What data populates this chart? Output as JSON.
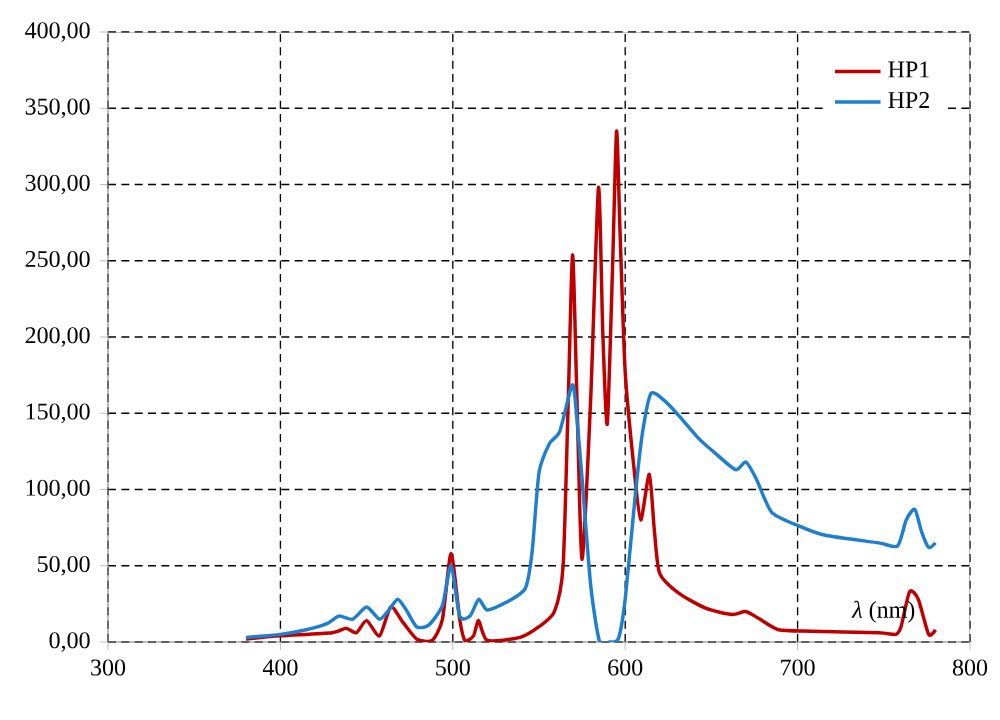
{
  "chart_data": {
    "type": "line",
    "xlabel": "*λ* (nm)",
    "xlim": [
      300,
      800
    ],
    "ylim": [
      0,
      400
    ],
    "xticks": [
      300,
      400,
      500,
      600,
      700,
      800
    ],
    "yticks": [
      {
        "value": 0,
        "label": "0,00"
      },
      {
        "value": 50,
        "label": "50,00"
      },
      {
        "value": 100,
        "label": "100,00"
      },
      {
        "value": 150,
        "label": "150,00"
      },
      {
        "value": 200,
        "label": "200,00"
      },
      {
        "value": 250,
        "label": "250,00"
      },
      {
        "value": 300,
        "label": "300,00"
      },
      {
        "value": 350,
        "label": "350,00"
      },
      {
        "value": 400,
        "label": "400,00"
      }
    ],
    "grid": true,
    "legend": "top right",
    "line_style": "solid",
    "marker": "none",
    "series": [
      {
        "name": "HP1",
        "color": "#c00000",
        "x": [
          380,
          400,
          430,
          438,
          444,
          450,
          457.5,
          464,
          471,
          479,
          488,
          494,
          499,
          504,
          507,
          512,
          515,
          520,
          539,
          550,
          559,
          564,
          567,
          569.5,
          572,
          575,
          580,
          584.5,
          587,
          589.6,
          592.7,
          595,
          597,
          600,
          605,
          609,
          614,
          617,
          620,
          631,
          647,
          662,
          670,
          678,
          689,
          708,
          747,
          757,
          760,
          765,
          770,
          776,
          780
        ],
        "values": [
          2,
          4,
          6,
          9,
          6,
          14,
          4,
          23,
          13,
          2,
          1,
          15,
          58,
          15,
          1,
          4,
          14,
          1,
          3,
          10,
          20,
          50,
          160,
          254,
          160,
          54,
          160,
          298,
          203,
          143,
          247,
          335,
          269,
          177,
          115,
          80,
          110,
          72,
          45,
          32,
          22,
          18,
          20,
          15,
          8,
          7,
          6,
          5,
          10,
          33,
          28,
          5,
          8
        ]
      },
      {
        "name": "HP2",
        "color": "#1f7fcf",
        "x": [
          380,
          400,
          415,
          427,
          434,
          442,
          450,
          457.5,
          463,
          468,
          473,
          479,
          486,
          494,
          499,
          504,
          510,
          515,
          520,
          531,
          542,
          546,
          550,
          556,
          562,
          569,
          571,
          575,
          580,
          585,
          591,
          596,
          600,
          606,
          610,
          615,
          624,
          633,
          643,
          652,
          664,
          670,
          676,
          685,
          701,
          716,
          747,
          758,
          763,
          768,
          772,
          776,
          780
        ],
        "values": [
          3,
          5,
          8,
          12,
          17,
          15,
          23,
          15,
          21,
          28,
          21,
          10,
          11,
          24,
          50,
          17,
          17,
          28,
          21,
          26,
          35,
          59,
          111,
          130,
          138,
          168,
          159,
          107,
          37,
          1,
          0,
          2,
          28,
          98,
          137,
          163,
          157,
          146,
          133,
          124,
          113,
          118,
          107,
          85,
          76,
          70,
          65,
          63,
          80,
          87,
          72,
          62,
          65
        ]
      }
    ]
  }
}
